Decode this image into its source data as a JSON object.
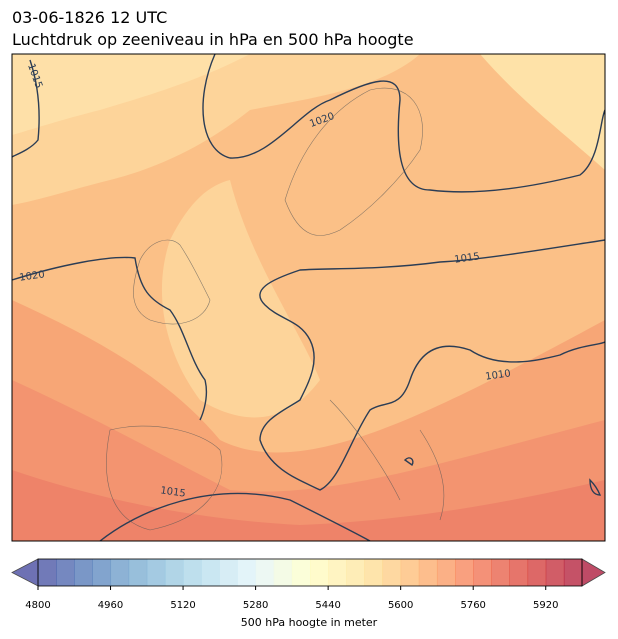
{
  "header": {
    "date": "03-06-1826 12 UTC",
    "title": "Luchtdruk op zeeniveau in hPa en 500 hPa hoogte"
  },
  "map": {
    "contour_labels": [
      "1015",
      "1020",
      "1020",
      "1015",
      "1010",
      "1015"
    ]
  },
  "colorbar": {
    "label": "500 hPa hoogte in meter",
    "range": [
      4800,
      6000
    ],
    "ticks": [
      4800,
      4960,
      5120,
      5280,
      5440,
      5600,
      5760,
      5920
    ]
  }
}
